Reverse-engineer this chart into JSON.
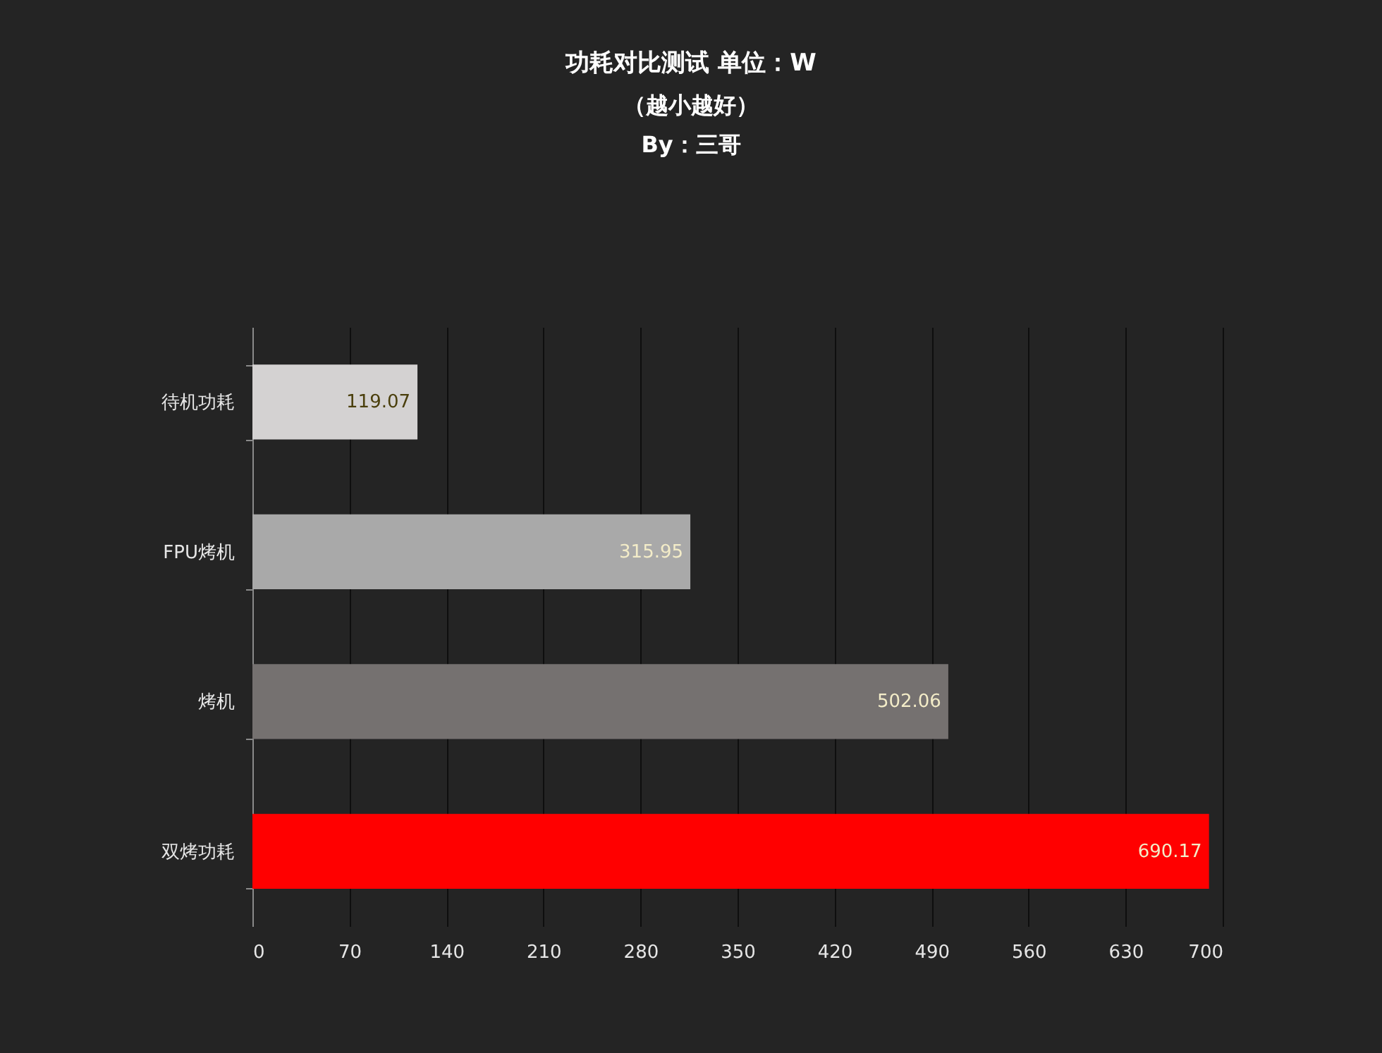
{
  "chart_data": {
    "type": "bar",
    "orientation": "horizontal",
    "title": "功耗对比测试 单位：W",
    "subtitle": "（越小越好）",
    "annotations": [
      "By：三哥"
    ],
    "categories": [
      "待机功耗",
      "FPU烤机",
      "烤机",
      "双烤功耗"
    ],
    "values": [
      119.07,
      315.95,
      502.06,
      690.17
    ],
    "colors": [
      "#d4d2d2",
      "#a9a9a9",
      "#757170",
      "#ff0000"
    ],
    "xlim": [
      0,
      700
    ],
    "xticks": [
      0,
      70,
      140,
      210,
      280,
      350,
      420,
      490,
      560,
      630,
      700
    ],
    "grid": "x",
    "data_labels": true
  }
}
